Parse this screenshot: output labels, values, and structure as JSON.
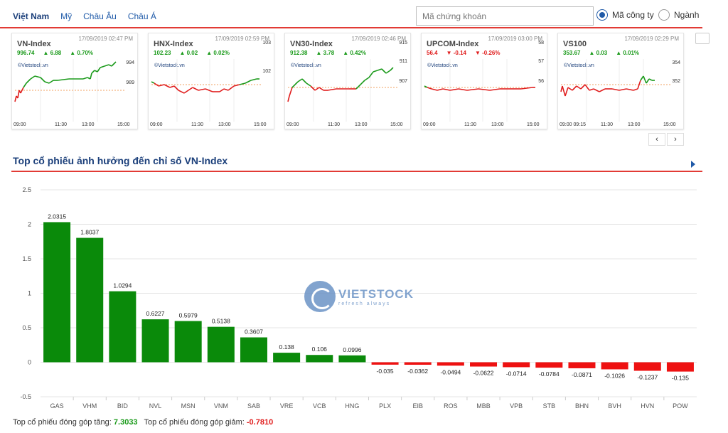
{
  "nav": {
    "tabs": [
      "Việt Nam",
      "Mỹ",
      "Châu Âu",
      "Châu Á"
    ],
    "search_placeholder": "Mã chứng khoán",
    "radio_company": "Mã công ty",
    "radio_sector": "Ngành"
  },
  "index_cards": [
    {
      "name": "VN-Index",
      "time": "17/09/2019 02:47 PM",
      "value": "996.74",
      "change": "6.88",
      "pct": "0.70%",
      "dir": "up",
      "brand": "©Vietstock.vn",
      "y_ticks": [
        "994",
        "989"
      ],
      "x_ticks": [
        "09:00",
        "11:30",
        "13:00",
        "15:00"
      ]
    },
    {
      "name": "HNX-Index",
      "time": "17/09/2019 02:59 PM",
      "value": "102.23",
      "change": "0.02",
      "pct": "0.02%",
      "dir": "up",
      "brand": "©Vietstock.vn",
      "y_ticks": [
        "103",
        "102"
      ],
      "x_ticks": [
        "09:00",
        "11:30",
        "13:00",
        "15:00"
      ]
    },
    {
      "name": "VN30-Index",
      "time": "17/09/2019 02:46 PM",
      "value": "912.38",
      "change": "3.78",
      "pct": "0.42%",
      "dir": "up",
      "brand": "©Vietstock.vn",
      "y_ticks": [
        "915",
        "911",
        "907"
      ],
      "x_ticks": [
        "09:00",
        "11:30",
        "13:00",
        "15:00"
      ]
    },
    {
      "name": "UPCOM-Index",
      "time": "17/09/2019 03:00 PM",
      "value": "56.4",
      "change": "-0.14",
      "pct": "-0.26%",
      "dir": "down",
      "brand": "©Vietstock.vn",
      "y_ticks": [
        "58",
        "57",
        "56"
      ],
      "x_ticks": [
        "09:00",
        "11:30",
        "13:00",
        "15:00"
      ]
    },
    {
      "name": "VS100",
      "time": "17/09/2019 02:29 PM",
      "value": "353.67",
      "change": "0.03",
      "pct": "0.01%",
      "dir": "up",
      "brand": "©Vietstock.vn",
      "y_ticks": [
        "354",
        "352"
      ],
      "x_ticks": [
        "09:00 09:15",
        "11:30",
        "13:00",
        "15:00"
      ]
    }
  ],
  "pager": {
    "prev": "‹",
    "next": "›"
  },
  "section_title": "Top cổ phiếu ảnh hưởng đến chỉ số VN-Index",
  "watermark": {
    "brand": "VIETSTOCK",
    "tagline": "refresh always"
  },
  "chart_data": {
    "type": "bar",
    "categories": [
      "GAS",
      "VHM",
      "BID",
      "NVL",
      "MSN",
      "VNM",
      "SAB",
      "VRE",
      "VCB",
      "HNG",
      "PLX",
      "EIB",
      "ROS",
      "MBB",
      "VPB",
      "STB",
      "BHN",
      "BVH",
      "HVN",
      "POW"
    ],
    "values": [
      2.0315,
      1.8037,
      1.0294,
      0.6227,
      0.5979,
      0.5138,
      0.3607,
      0.138,
      0.106,
      0.0996,
      -0.035,
      -0.0362,
      -0.0494,
      -0.0622,
      -0.0714,
      -0.0784,
      -0.0871,
      -0.1026,
      -0.1237,
      -0.135
    ],
    "labels": [
      "2.0315",
      "1.8037",
      "1.0294",
      "0.6227",
      "0.5979",
      "0.5138",
      "0.3607",
      "0.138",
      "0.106",
      "0.0996",
      "-0.035",
      "-0.0362",
      "-0.0494",
      "-0.0622",
      "-0.0714",
      "-0.0784",
      "-0.0871",
      "-0.1026",
      "-0.1237",
      "-0.135"
    ],
    "y_ticks": [
      "2.5",
      "2",
      "1.5",
      "1",
      "0.5",
      "0",
      "-0.5"
    ],
    "ylim": [
      -0.5,
      2.5
    ],
    "grid": true,
    "colors": {
      "positive": "#0a8a0a",
      "negative": "#ee1111"
    }
  },
  "footer": {
    "up_label": "Top cổ phiếu đóng góp tăng:",
    "up_value": "7.3033",
    "down_label": "Top cổ phiếu đóng góp giảm:",
    "down_value": "-0.7810"
  }
}
